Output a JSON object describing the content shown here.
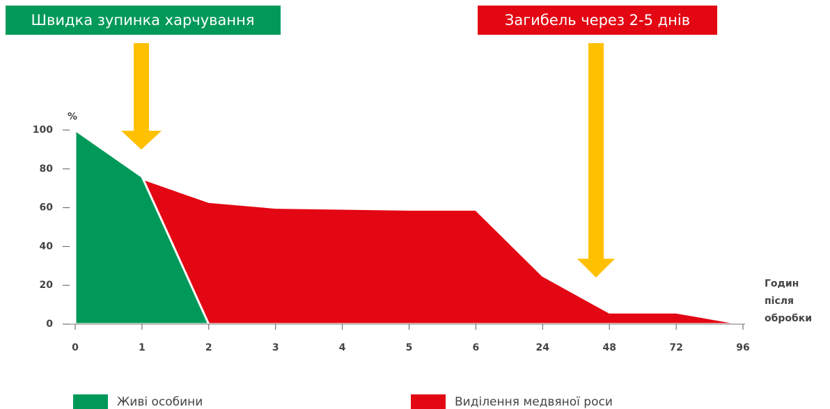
{
  "chart_data": {
    "type": "area",
    "annotations": [
      "Швидка зупинка харчування",
      "Загибель через 2-5 днів"
    ],
    "y_label": "%",
    "x_label": [
      "Годин",
      "після",
      "обробки"
    ],
    "categories": [
      "0",
      "1",
      "2",
      "3",
      "4",
      "5",
      "6",
      "24",
      "48",
      "72",
      "96"
    ],
    "series": [
      {
        "name": "Живі особини",
        "color": "#00995a",
        "values": [
          100,
          76,
          0,
          null,
          null,
          null,
          null,
          null,
          null,
          null,
          null
        ]
      },
      {
        "name": "Виділення медвяної роси",
        "color": "#e30613",
        "values": [
          null,
          75,
          63,
          60,
          59.5,
          59,
          59,
          25,
          6,
          6,
          0
        ]
      }
    ],
    "ylim": [
      0,
      100
    ],
    "yticks": [
      0,
      20,
      40,
      60,
      80,
      100
    ]
  }
}
